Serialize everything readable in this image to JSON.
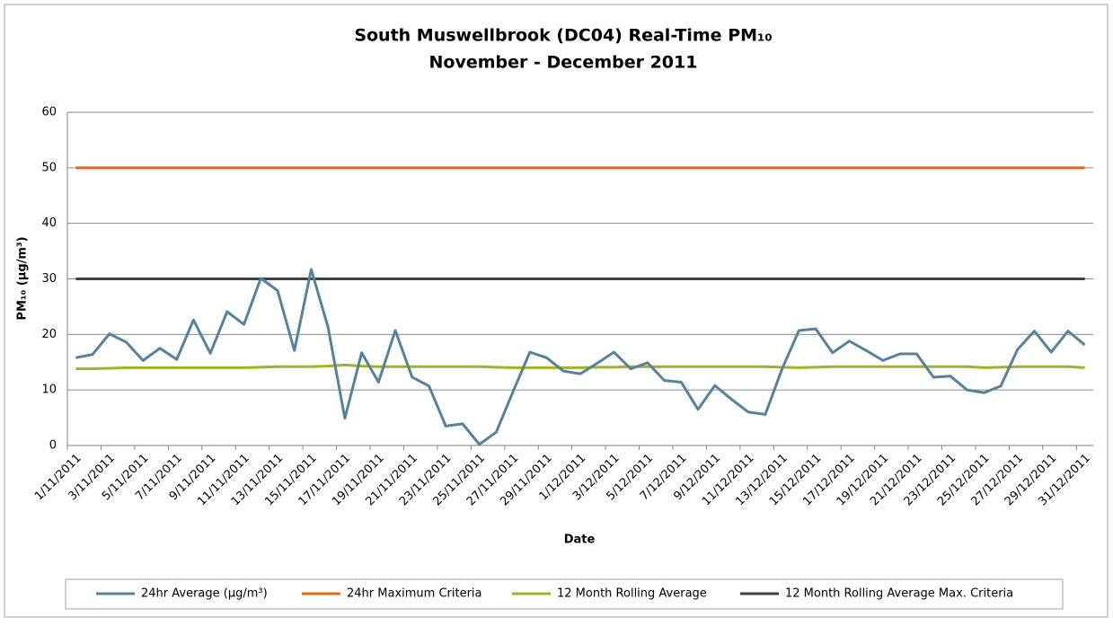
{
  "chart_data": {
    "type": "line",
    "title": "South Muswellbrook (DC04) Real-Time PM₁₀",
    "subtitle": "November - December 2011",
    "x_label": "Date",
    "y_label": "PM₁₀ (µg/m³)",
    "categories": [
      "1/11/2011",
      null,
      "3/11/2011",
      null,
      "5/11/2011",
      null,
      "7/11/2011",
      null,
      "9/11/2011",
      null,
      "11/11/2011",
      null,
      "13/11/2011",
      null,
      "15/11/2011",
      null,
      "17/11/2011",
      null,
      "19/11/2011",
      null,
      "21/11/2011",
      null,
      "23/11/2011",
      null,
      "25/11/2011",
      null,
      "27/11/2011",
      null,
      "29/11/2011",
      null,
      "1/12/2011",
      null,
      "3/12/2011",
      null,
      "5/12/2011",
      null,
      "7/12/2011",
      null,
      "9/12/2011",
      null,
      "11/12/2011",
      null,
      "13/12/2011",
      null,
      "15/12/2011",
      null,
      "17/12/2011",
      null,
      "19/12/2011",
      null,
      "21/12/2011",
      null,
      "23/12/2011",
      null,
      "25/12/2011",
      null,
      "27/12/2011",
      null,
      "29/12/2011",
      null,
      "31/12/2011"
    ],
    "series": [
      {
        "name": "24hr Average (µg/m³)",
        "color": "#58819a",
        "values": [
          15.8,
          16.4,
          20.1,
          18.6,
          15.3,
          17.5,
          15.5,
          22.6,
          16.6,
          24.1,
          21.8,
          30.1,
          27.9,
          17.1,
          31.7,
          21.3,
          4.9,
          16.7,
          11.4,
          20.7,
          12.3,
          10.7,
          3.5,
          3.9,
          0.2,
          2.4,
          9.7,
          16.8,
          15.8,
          13.4,
          12.9,
          14.8,
          16.8,
          13.8,
          14.9,
          11.7,
          11.4,
          6.5,
          10.8,
          8.3,
          6.0,
          5.6,
          13.8,
          20.7,
          21.0,
          16.7,
          18.8,
          17.1,
          15.3,
          16.5,
          16.5,
          12.3,
          12.5,
          10.0,
          9.5,
          10.7,
          17.3,
          20.6,
          16.8,
          20.6,
          18.1
        ]
      },
      {
        "name": "24hr Maximum Criteria",
        "color": "#e8681a",
        "values": [
          50,
          50,
          50,
          50,
          50,
          50,
          50,
          50,
          50,
          50,
          50,
          50,
          50,
          50,
          50,
          50,
          50,
          50,
          50,
          50,
          50,
          50,
          50,
          50,
          50,
          50,
          50,
          50,
          50,
          50,
          50,
          50,
          50,
          50,
          50,
          50,
          50,
          50,
          50,
          50,
          50,
          50,
          50,
          50,
          50,
          50,
          50,
          50,
          50,
          50,
          50,
          50,
          50,
          50,
          50,
          50,
          50,
          50,
          50,
          50,
          50
        ]
      },
      {
        "name": "12 Month Rolling Average",
        "color": "#9cb426",
        "values": [
          13.8,
          13.8,
          13.9,
          14.0,
          14.0,
          14.0,
          14.0,
          14.0,
          14.0,
          14.0,
          14.0,
          14.1,
          14.2,
          14.2,
          14.2,
          14.3,
          14.5,
          14.3,
          14.2,
          14.2,
          14.2,
          14.2,
          14.2,
          14.2,
          14.2,
          14.1,
          14.0,
          14.0,
          14.0,
          14.0,
          14.0,
          14.1,
          14.1,
          14.2,
          14.2,
          14.2,
          14.2,
          14.2,
          14.2,
          14.2,
          14.2,
          14.2,
          14.1,
          14.0,
          14.1,
          14.2,
          14.2,
          14.2,
          14.2,
          14.2,
          14.2,
          14.2,
          14.2,
          14.2,
          14.0,
          14.1,
          14.2,
          14.2,
          14.2,
          14.2,
          14.0
        ]
      },
      {
        "name": "12 Month Rolling Average Max. Criteria",
        "color": "#404040",
        "values": [
          30,
          30,
          30,
          30,
          30,
          30,
          30,
          30,
          30,
          30,
          30,
          30,
          30,
          30,
          30,
          30,
          30,
          30,
          30,
          30,
          30,
          30,
          30,
          30,
          30,
          30,
          30,
          30,
          30,
          30,
          30,
          30,
          30,
          30,
          30,
          30,
          30,
          30,
          30,
          30,
          30,
          30,
          30,
          30,
          30,
          30,
          30,
          30,
          30,
          30,
          30,
          30,
          30,
          30,
          30,
          30,
          30,
          30,
          30,
          30,
          30
        ]
      }
    ],
    "ylim": [
      0,
      60
    ],
    "yticks": [
      0,
      10,
      20,
      30,
      40,
      50,
      60
    ],
    "grid": true
  }
}
